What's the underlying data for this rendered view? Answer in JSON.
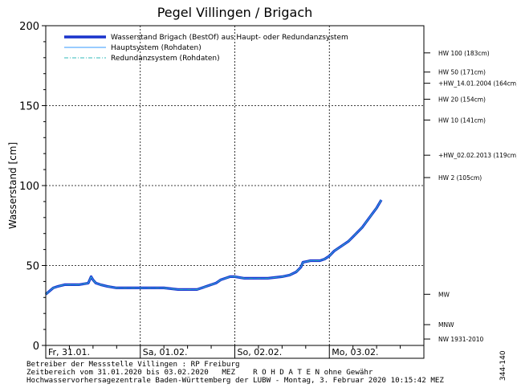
{
  "chart_data": {
    "type": "line",
    "title": "Pegel Villingen / Brigach",
    "ylabel": "Wasserstand [cm]",
    "ylim": [
      0,
      200
    ],
    "yticks": [
      0,
      50,
      100,
      150,
      200
    ],
    "xlim": [
      0,
      4
    ],
    "day_labels": [
      "Fr, 31.01.",
      "Sa, 01.02.",
      "So, 02.02.",
      "Mo, 03.02."
    ],
    "grid": true,
    "legend_position": "top-left",
    "legend": [
      {
        "label": "Wasserstand Brigach (BestOf)   aus Haupt- oder Redundanzsystem",
        "style": "thick",
        "color": "#1a33cc"
      },
      {
        "label": "Hauptsystem (Rohdaten)",
        "style": "thin",
        "color": "#3399ff"
      },
      {
        "label": "Redundanzsystem (Rohdaten)",
        "style": "dashdot",
        "color": "#33bbbb"
      }
    ],
    "reference_levels": [
      {
        "label": "HW 100 (183cm)",
        "value": 183
      },
      {
        "label": "HW 50 (171cm)",
        "value": 171
      },
      {
        "label": "+HW_14.01.2004 (164cm)",
        "value": 164
      },
      {
        "label": "HW 20 (154cm)",
        "value": 154
      },
      {
        "label": "HW 10 (141cm)",
        "value": 141
      },
      {
        "label": "+HW_02.02.2013 (119cm)",
        "value": 119
      },
      {
        "label": "HW 2 (105cm)",
        "value": 105
      },
      {
        "label": "MW",
        "value": 32
      },
      {
        "label": "MNW",
        "value": 13
      },
      {
        "label": "NW 1931-2010",
        "value": 4
      }
    ],
    "series": [
      {
        "x": [
          0,
          0.04,
          0.08,
          0.13,
          0.2,
          0.25,
          0.35,
          0.45,
          0.48,
          0.5,
          0.53,
          0.58,
          0.65,
          0.75,
          0.85,
          0.9,
          1.0,
          1.1,
          1.25,
          1.4,
          1.5,
          1.6,
          1.7,
          1.8,
          1.85,
          1.9,
          1.95,
          2.0,
          2.1,
          2.2,
          2.35,
          2.5,
          2.58,
          2.65,
          2.7,
          2.72,
          2.8,
          2.9,
          2.95,
          3.0,
          3.05,
          3.1,
          3.15,
          3.2,
          3.25,
          3.3,
          3.35,
          3.4,
          3.45,
          3.5,
          3.55
        ],
        "y": [
          32,
          34,
          36,
          37,
          38,
          38,
          38,
          39,
          43,
          41,
          39,
          38,
          37,
          36,
          36,
          36,
          36,
          36,
          36,
          35,
          35,
          35,
          37,
          39,
          41,
          42,
          43,
          43,
          42,
          42,
          42,
          43,
          44,
          46,
          49,
          52,
          53,
          53,
          54,
          56,
          59,
          61,
          63,
          65,
          68,
          71,
          74,
          78,
          82,
          86,
          91
        ]
      }
    ]
  },
  "footer": {
    "line1": "Betreiber der Messstelle Villingen : RP Freiburg",
    "line2": "Zeitbereich vom 31.01.2020 bis 03.02.2020   MEZ    R O H D A T E N ohne Gewähr",
    "line3": "Hochwasservorhersagezentrale Baden-Württemberg der LUBW - Montag, 3. Februar 2020 10:15:42 MEZ"
  },
  "side_code": "344-140"
}
